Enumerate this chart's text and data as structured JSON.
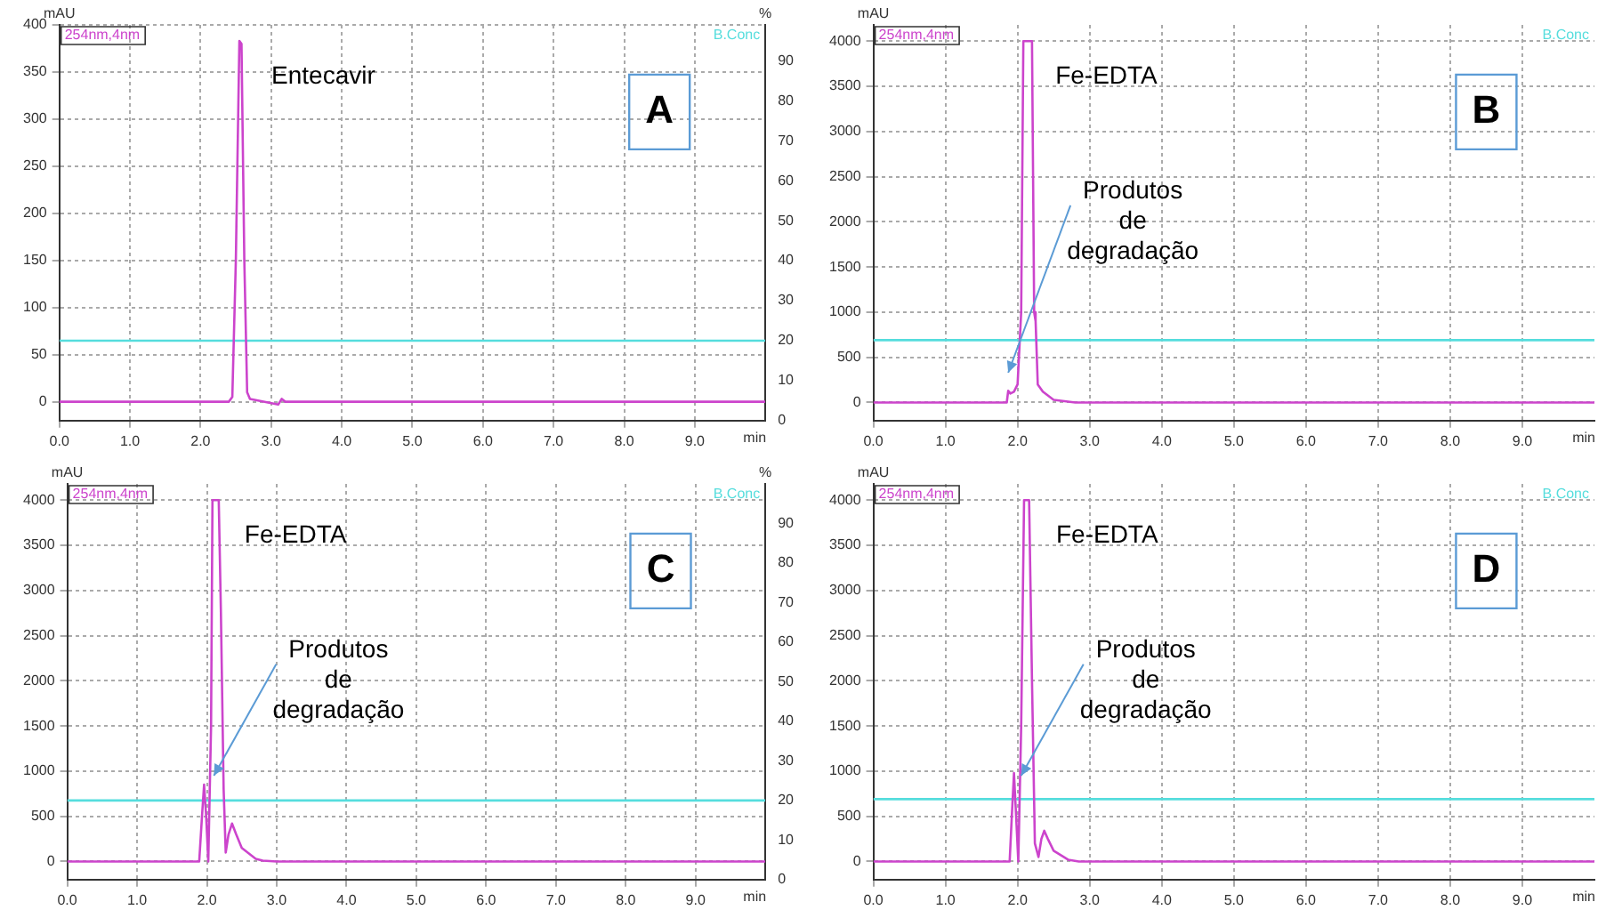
{
  "chart_data": [
    {
      "type": "line",
      "title": "A",
      "ylabel": "mAU",
      "y2label": "%",
      "xlabel": "min",
      "legend": "top",
      "grid": true,
      "annotations": [
        "Entecavir"
      ],
      "xlim": [
        0,
        10
      ],
      "xticks": [
        {
          "value": 0,
          "label": "0.0"
        },
        {
          "value": 1,
          "label": "1.0"
        },
        {
          "value": 2,
          "label": "2.0"
        },
        {
          "value": 3,
          "label": "3.0"
        },
        {
          "value": 4,
          "label": "4.0"
        },
        {
          "value": 5,
          "label": "5.0"
        },
        {
          "value": 6,
          "label": "6.0"
        },
        {
          "value": 7,
          "label": "7.0"
        },
        {
          "value": 8,
          "label": "8.0"
        },
        {
          "value": 9,
          "label": "9.0"
        }
      ],
      "ylim": [
        -20,
        400
      ],
      "yticks": [
        0,
        50,
        100,
        150,
        200,
        250,
        300,
        350,
        400
      ],
      "y2lim": [
        0,
        99
      ],
      "y2ticks": [
        0,
        10,
        20,
        30,
        40,
        50,
        60,
        70,
        80,
        90
      ],
      "series": [
        {
          "name": "254nm,4nm",
          "color": "#cc44cc",
          "x": [
            0,
            2.4,
            2.45,
            2.5,
            2.55,
            2.58,
            2.62,
            2.66,
            2.7,
            3.1,
            3.15,
            3.2,
            10
          ],
          "values": [
            0,
            0,
            5,
            150,
            383,
            380,
            150,
            10,
            3,
            -3,
            3,
            0,
            0
          ]
        },
        {
          "name": "B.Conc",
          "color": "#55dddd",
          "axis": "y2",
          "x": [
            0,
            10
          ],
          "values": [
            20,
            20
          ]
        }
      ]
    },
    {
      "type": "line",
      "title": "B",
      "ylabel": "mAU",
      "xlabel": "min",
      "legend": "top",
      "grid": true,
      "annotations": [
        "Fe-EDTA",
        {
          "text": "Produtos de degradação",
          "x": 1.87,
          "y": 330
        }
      ],
      "xlim": [
        0,
        10
      ],
      "xticks": [
        {
          "value": 0,
          "label": "0.0"
        },
        {
          "value": 1,
          "label": "1.0"
        },
        {
          "value": 2,
          "label": "2.0"
        },
        {
          "value": 3,
          "label": "3.0"
        },
        {
          "value": 4,
          "label": "4.0"
        },
        {
          "value": 5,
          "label": "5.0"
        },
        {
          "value": 6,
          "label": "6.0"
        },
        {
          "value": 7,
          "label": "7.0"
        },
        {
          "value": 8,
          "label": "8.0"
        },
        {
          "value": 9,
          "label": "9.0"
        }
      ],
      "ylim": [
        -200,
        4180
      ],
      "yticks": [
        0,
        500,
        1000,
        1500,
        2000,
        2500,
        3000,
        3500,
        4000
      ],
      "series": [
        {
          "name": "254nm,4nm",
          "color": "#cc44cc",
          "x": [
            0,
            1.85,
            1.87,
            1.9,
            1.95,
            2.0,
            2.05,
            2.08,
            2.2,
            2.23,
            2.25,
            2.28,
            2.35,
            2.5,
            2.8,
            10
          ],
          "values": [
            0,
            0,
            130,
            100,
            120,
            200,
            1000,
            4000,
            4000,
            1000,
            900,
            200,
            120,
            30,
            0,
            0
          ]
        },
        {
          "name": "B.Conc",
          "color": "#55dddd",
          "x": [
            0,
            10
          ],
          "values": [
            690,
            690
          ]
        }
      ]
    },
    {
      "type": "line",
      "title": "C",
      "ylabel": "mAU",
      "y2label": "%",
      "xlabel": "min",
      "legend": "top",
      "grid": true,
      "annotations": [
        "Fe-EDTA",
        {
          "text": "Produtos de degradação",
          "x": 2.1,
          "y": 950
        }
      ],
      "xlim": [
        0,
        10
      ],
      "xticks": [
        {
          "value": 0,
          "label": "0.0"
        },
        {
          "value": 1,
          "label": "1.0"
        },
        {
          "value": 2,
          "label": "2.0"
        },
        {
          "value": 3,
          "label": "3.0"
        },
        {
          "value": 4,
          "label": "4.0"
        },
        {
          "value": 5,
          "label": "5.0"
        },
        {
          "value": 6,
          "label": "6.0"
        },
        {
          "value": 7,
          "label": "7.0"
        },
        {
          "value": 8,
          "label": "8.0"
        },
        {
          "value": 9,
          "label": "9.0"
        }
      ],
      "ylim": [
        -200,
        4180
      ],
      "yticks": [
        0,
        500,
        1000,
        1500,
        2000,
        2500,
        3000,
        3500,
        4000
      ],
      "y2lim": [
        0,
        100
      ],
      "y2ticks": [
        0,
        10,
        20,
        30,
        40,
        50,
        60,
        70,
        80,
        90
      ],
      "series": [
        {
          "name": "254nm,4nm",
          "color": "#cc44cc",
          "x": [
            0,
            1.89,
            1.93,
            1.96,
            1.99,
            2.02,
            2.06,
            2.08,
            2.17,
            2.2,
            2.24,
            2.27,
            2.31,
            2.36,
            2.42,
            2.5,
            2.7,
            2.8,
            3.0,
            10
          ],
          "values": [
            0,
            0,
            500,
            850,
            500,
            0,
            1500,
            4000,
            4000,
            2800,
            800,
            100,
            300,
            420,
            300,
            150,
            30,
            10,
            0,
            0
          ]
        },
        {
          "name": "B.Conc",
          "color": "#55dddd",
          "axis": "y2",
          "x": [
            0,
            10
          ],
          "values": [
            20,
            20
          ]
        }
      ]
    },
    {
      "type": "line",
      "title": "D",
      "ylabel": "mAU",
      "xlabel": "min",
      "legend": "top",
      "grid": true,
      "annotations": [
        "Fe-EDTA",
        {
          "text": "Produtos de degradação",
          "x": 2.05,
          "y": 950
        }
      ],
      "xlim": [
        0,
        10
      ],
      "xticks": [
        {
          "value": 0,
          "label": "0.0"
        },
        {
          "value": 1,
          "label": "1.0"
        },
        {
          "value": 2,
          "label": "2.0"
        },
        {
          "value": 3,
          "label": "3.0"
        },
        {
          "value": 4,
          "label": "4.0"
        },
        {
          "value": 5,
          "label": "5.0"
        },
        {
          "value": 6,
          "label": "6.0"
        },
        {
          "value": 7,
          "label": "7.0"
        },
        {
          "value": 8,
          "label": "8.0"
        },
        {
          "value": 9,
          "label": "9.0"
        }
      ],
      "ylim": [
        -200,
        4180
      ],
      "yticks": [
        0,
        500,
        1000,
        1500,
        2000,
        2500,
        3000,
        3500,
        4000
      ],
      "series": [
        {
          "name": "254nm,4nm",
          "color": "#cc44cc",
          "x": [
            0,
            1.89,
            1.92,
            1.95,
            1.98,
            2.01,
            2.05,
            2.09,
            2.16,
            2.2,
            2.24,
            2.29,
            2.33,
            2.37,
            2.42,
            2.5,
            2.7,
            2.85,
            10
          ],
          "values": [
            0,
            0,
            500,
            980,
            500,
            0,
            1500,
            4000,
            4000,
            2000,
            200,
            50,
            250,
            340,
            250,
            120,
            20,
            0,
            0
          ]
        },
        {
          "name": "B.Conc",
          "color": "#55dddd",
          "x": [
            0,
            10
          ],
          "values": [
            690,
            690
          ]
        }
      ]
    }
  ]
}
